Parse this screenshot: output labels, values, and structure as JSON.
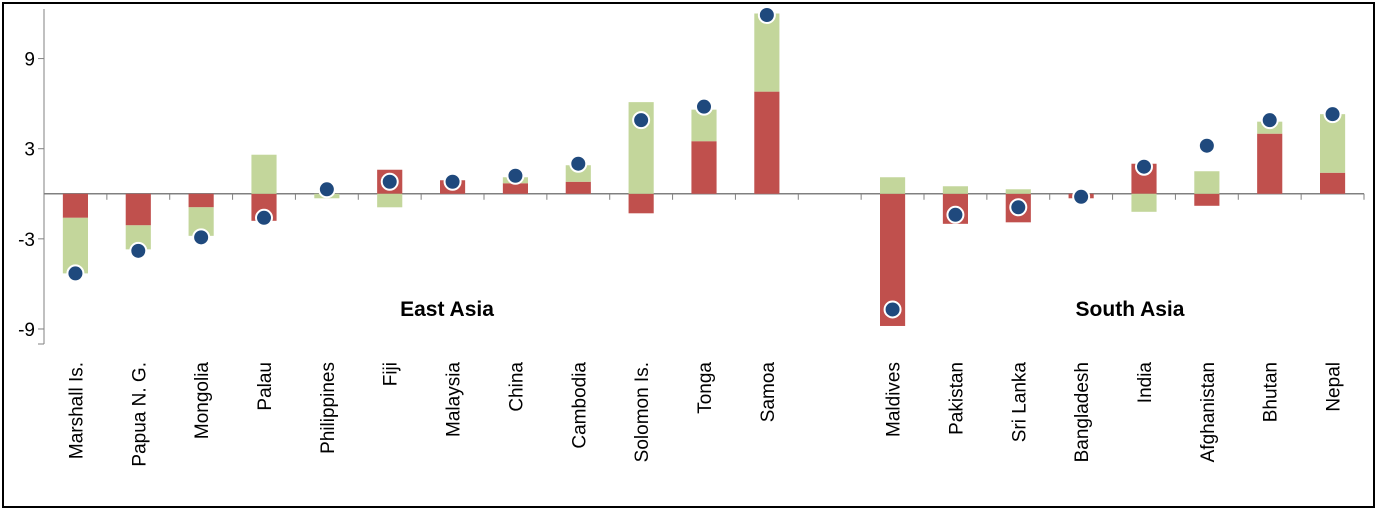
{
  "chart_data": {
    "type": "bar",
    "categories": [
      "Marshall Is.",
      "Papua N. G.",
      "Mongolia",
      "Palau",
      "Philippines",
      "Fiji",
      "Malaysia",
      "China",
      "Cambodia",
      "Solomon Is.",
      "Tonga",
      "Samoa",
      "",
      "Maldives",
      "Pakistan",
      "Sri Lanka",
      "Bangladesh",
      "India",
      "Afghanistan",
      "Bhutan",
      "Nepal"
    ],
    "groups": [
      {
        "label": "East Asia",
        "categories": [
          "Marshall Is.",
          "Papua N. G.",
          "Mongolia",
          "Palau",
          "Philippines",
          "Fiji",
          "Malaysia",
          "China",
          "Cambodia",
          "Solomon Is.",
          "Tonga",
          "Samoa"
        ]
      },
      {
        "label": "South Asia",
        "categories": [
          "Maldives",
          "Pakistan",
          "Sri Lanka",
          "Bangladesh",
          "India",
          "Afghanistan",
          "Bhutan",
          "Nepal"
        ]
      }
    ],
    "series": [
      {
        "color": "#c0504d",
        "values": [
          -1.6,
          -2.1,
          -0.9,
          -1.8,
          0.0,
          1.6,
          0.9,
          0.7,
          0.8,
          -1.3,
          3.5,
          6.8,
          null,
          -8.8,
          -2.0,
          -1.9,
          -0.3,
          2.0,
          -0.8,
          4.0,
          1.4
        ]
      },
      {
        "color": "#c3d69b",
        "values": [
          -3.7,
          -1.6,
          -1.9,
          2.6,
          -0.3,
          -0.9,
          0.0,
          0.4,
          1.1,
          6.1,
          2.1,
          5.2,
          null,
          1.1,
          0.5,
          0.3,
          0.0,
          -1.2,
          1.5,
          0.8,
          3.9
        ]
      },
      {
        "color": "#1f497d",
        "marker": "circle",
        "values": [
          -5.3,
          -3.8,
          -2.9,
          -1.6,
          0.3,
          0.8,
          0.8,
          1.2,
          2.0,
          4.9,
          5.8,
          11.9,
          null,
          -7.7,
          -1.4,
          -0.9,
          -0.2,
          1.8,
          3.2,
          4.9,
          5.3
        ]
      }
    ],
    "yticks": [
      9,
      3,
      -3,
      -9
    ],
    "ylim": [
      -10,
      12.3
    ],
    "grid": false,
    "legend": "none"
  }
}
